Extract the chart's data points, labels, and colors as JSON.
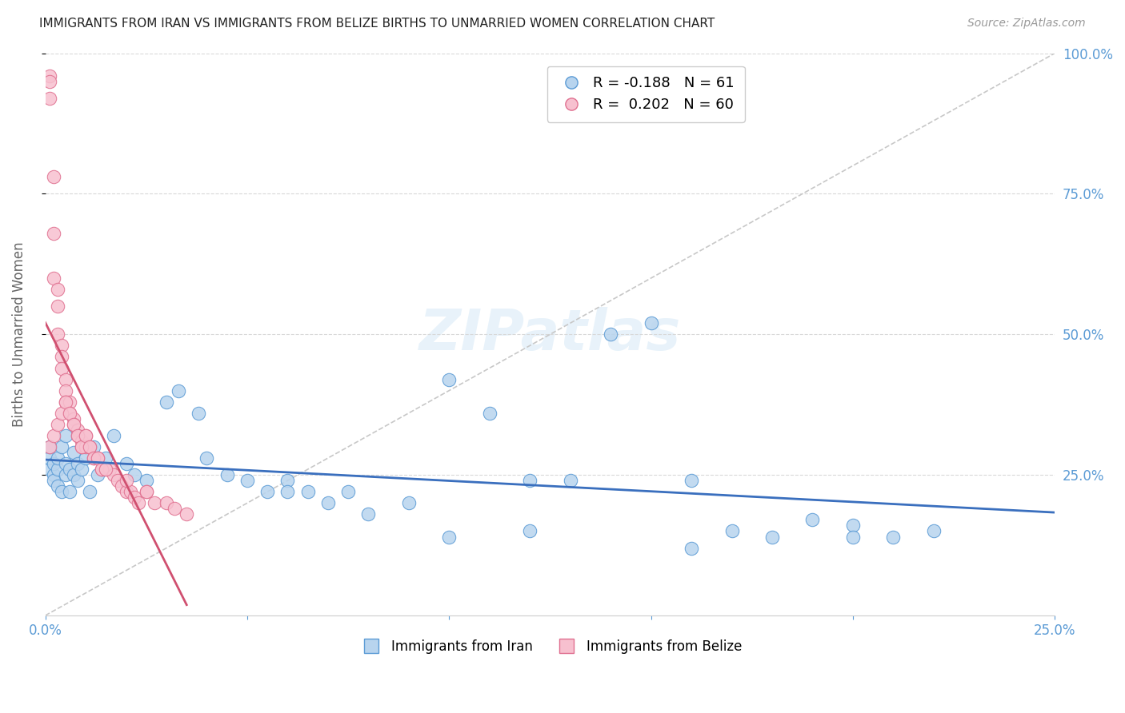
{
  "title": "IMMIGRANTS FROM IRAN VS IMMIGRANTS FROM BELIZE BIRTHS TO UNMARRIED WOMEN CORRELATION CHART",
  "source": "Source: ZipAtlas.com",
  "ylabel": "Births to Unmarried Women",
  "legend_iran": "Immigrants from Iran",
  "legend_belize": "Immigrants from Belize",
  "R_iran": -0.188,
  "N_iran": 61,
  "R_belize": 0.202,
  "N_belize": 60,
  "xlim": [
    0.0,
    0.25
  ],
  "ylim": [
    0.0,
    1.0
  ],
  "color_iran_fill": "#b8d4ee",
  "color_iran_edge": "#5b9bd5",
  "color_belize_fill": "#f7c0cf",
  "color_belize_edge": "#e07090",
  "color_iran_line": "#3a6fbe",
  "color_belize_line": "#d05070",
  "color_axis": "#5b9bd5",
  "background": "#ffffff",
  "iran_x": [
    0.001,
    0.001,
    0.001,
    0.002,
    0.002,
    0.002,
    0.003,
    0.003,
    0.003,
    0.004,
    0.004,
    0.005,
    0.005,
    0.005,
    0.006,
    0.006,
    0.007,
    0.007,
    0.008,
    0.008,
    0.009,
    0.01,
    0.011,
    0.012,
    0.013,
    0.015,
    0.017,
    0.02,
    0.022,
    0.025,
    0.03,
    0.033,
    0.038,
    0.04,
    0.045,
    0.05,
    0.055,
    0.06,
    0.065,
    0.07,
    0.075,
    0.08,
    0.09,
    0.1,
    0.11,
    0.12,
    0.13,
    0.14,
    0.15,
    0.16,
    0.17,
    0.18,
    0.19,
    0.2,
    0.21,
    0.22,
    0.06,
    0.1,
    0.12,
    0.16,
    0.2
  ],
  "iran_y": [
    0.26,
    0.28,
    0.3,
    0.25,
    0.27,
    0.24,
    0.23,
    0.26,
    0.28,
    0.22,
    0.3,
    0.25,
    0.27,
    0.32,
    0.26,
    0.22,
    0.29,
    0.25,
    0.24,
    0.27,
    0.26,
    0.28,
    0.22,
    0.3,
    0.25,
    0.28,
    0.32,
    0.27,
    0.25,
    0.24,
    0.38,
    0.4,
    0.36,
    0.28,
    0.25,
    0.24,
    0.22,
    0.24,
    0.22,
    0.2,
    0.22,
    0.18,
    0.2,
    0.42,
    0.36,
    0.24,
    0.24,
    0.5,
    0.52,
    0.24,
    0.15,
    0.14,
    0.17,
    0.16,
    0.14,
    0.15,
    0.22,
    0.14,
    0.15,
    0.12,
    0.14
  ],
  "belize_x": [
    0.001,
    0.001,
    0.001,
    0.002,
    0.002,
    0.002,
    0.003,
    0.003,
    0.003,
    0.004,
    0.004,
    0.004,
    0.005,
    0.005,
    0.005,
    0.006,
    0.006,
    0.007,
    0.007,
    0.008,
    0.008,
    0.009,
    0.009,
    0.01,
    0.01,
    0.011,
    0.012,
    0.013,
    0.014,
    0.015,
    0.016,
    0.017,
    0.018,
    0.019,
    0.02,
    0.021,
    0.022,
    0.023,
    0.025,
    0.027,
    0.03,
    0.032,
    0.035,
    0.001,
    0.002,
    0.003,
    0.004,
    0.005,
    0.006,
    0.007,
    0.008,
    0.009,
    0.01,
    0.011,
    0.012,
    0.013,
    0.014,
    0.015,
    0.02,
    0.025
  ],
  "belize_y": [
    0.96,
    0.95,
    0.92,
    0.78,
    0.68,
    0.6,
    0.58,
    0.55,
    0.5,
    0.48,
    0.46,
    0.44,
    0.42,
    0.4,
    0.38,
    0.38,
    0.36,
    0.35,
    0.34,
    0.33,
    0.32,
    0.31,
    0.3,
    0.32,
    0.3,
    0.3,
    0.28,
    0.28,
    0.26,
    0.26,
    0.26,
    0.25,
    0.24,
    0.23,
    0.22,
    0.22,
    0.21,
    0.2,
    0.22,
    0.2,
    0.2,
    0.19,
    0.18,
    0.3,
    0.32,
    0.34,
    0.36,
    0.38,
    0.36,
    0.34,
    0.32,
    0.3,
    0.32,
    0.3,
    0.28,
    0.28,
    0.26,
    0.26,
    0.24,
    0.22
  ]
}
